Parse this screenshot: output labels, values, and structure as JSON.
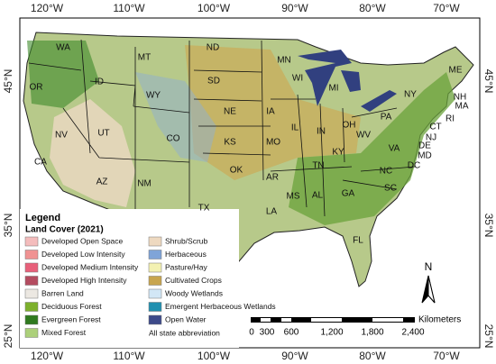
{
  "axis_labels": {
    "top": [
      "120°W",
      "110°W",
      "100°W",
      "90°W",
      "80°W",
      "70°W"
    ],
    "bottom": [
      "120°W",
      "110°W",
      "100°W",
      "90°W",
      "80°W",
      "70°W"
    ],
    "left": [
      "45°N",
      "35°N",
      "25°N"
    ],
    "right": [
      "45°N",
      "35°N",
      "25°N"
    ]
  },
  "states": [
    "WA",
    "MT",
    "ND",
    "MN",
    "ME",
    "OR",
    "ID",
    "WY",
    "SD",
    "WI",
    "MI",
    "NY",
    "NH",
    "MA",
    "NE",
    "IA",
    "IL",
    "IN",
    "OH",
    "PA",
    "CT",
    "RI",
    "NJ",
    "NV",
    "UT",
    "CO",
    "KS",
    "MO",
    "KY",
    "WV",
    "VA",
    "DE",
    "MD",
    "DC",
    "CA",
    "AZ",
    "NM",
    "OK",
    "AR",
    "TN",
    "NC",
    "SC",
    "TX",
    "MS",
    "AL",
    "GA",
    "LA",
    "FL"
  ],
  "legend": {
    "title": "Legend",
    "subtitle": "Land Cover (2021)",
    "items": [
      {
        "label": "Developed Open Space",
        "color": "#f4bcbc"
      },
      {
        "label": "Developed Low Intensity",
        "color": "#f09292"
      },
      {
        "label": "Developed Medium Intensity",
        "color": "#e8607a"
      },
      {
        "label": "Developed High Intensity",
        "color": "#b44c60"
      },
      {
        "label": "Barren Land",
        "color": "#ece8e2"
      },
      {
        "label": "Deciduous Forest",
        "color": "#7db02c"
      },
      {
        "label": "Evergreen Forest",
        "color": "#2f7a1f"
      },
      {
        "label": "Mixed Forest",
        "color": "#acd07a"
      },
      {
        "label": "Shrub/Scrub",
        "color": "#eed9c0"
      },
      {
        "label": "Herbaceous",
        "color": "#7fa4d8"
      },
      {
        "label": "Pasture/Hay",
        "color": "#f3f1b2"
      },
      {
        "label": "Cultivated Crops",
        "color": "#c8a54e"
      },
      {
        "label": "Woody Wetlands",
        "color": "#d2e7f6"
      },
      {
        "label": "Emergent Herbaceous Wetlands",
        "color": "#2090b0"
      },
      {
        "label": "Open Water",
        "color": "#3d4a8a"
      }
    ],
    "note": "All state abbreviation"
  },
  "scale_bar": {
    "unit": "Kilometers",
    "labels": [
      "0",
      "300",
      "600",
      "1,200",
      "1,800",
      "2,400"
    ]
  },
  "north_arrow": "N"
}
